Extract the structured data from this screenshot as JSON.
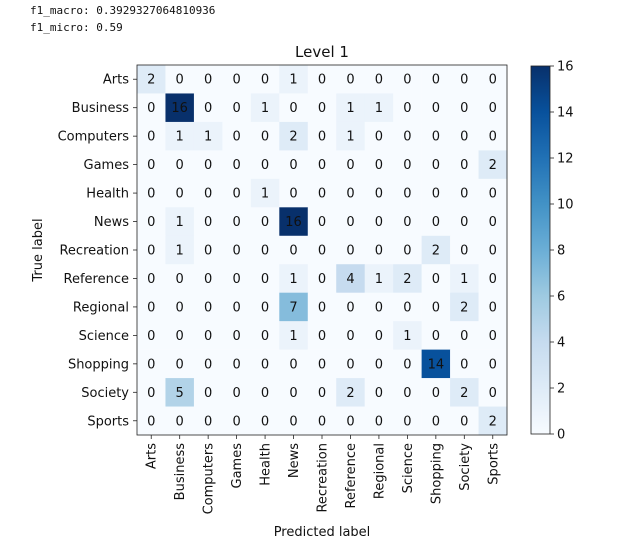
{
  "metrics": {
    "macro_text": "f1_macro: 0.3929327064810936",
    "micro_text": "f1_micro: 0.59"
  },
  "chart_data": {
    "type": "heatmap",
    "title": "Level 1",
    "xlabel": "Predicted label",
    "ylabel": "True label",
    "x_categories": [
      "Arts",
      "Business",
      "Computers",
      "Games",
      "Health",
      "News",
      "Recreation",
      "Reference",
      "Regional",
      "Science",
      "Shopping",
      "Society",
      "Sports"
    ],
    "y_categories": [
      "Arts",
      "Business",
      "Computers",
      "Games",
      "Health",
      "News",
      "Recreation",
      "Reference",
      "Regional",
      "Science",
      "Shopping",
      "Society",
      "Sports"
    ],
    "values": [
      [
        2,
        0,
        0,
        0,
        0,
        1,
        0,
        0,
        0,
        0,
        0,
        0,
        0
      ],
      [
        0,
        16,
        0,
        0,
        1,
        0,
        0,
        1,
        1,
        0,
        0,
        0,
        0
      ],
      [
        0,
        1,
        1,
        0,
        0,
        2,
        0,
        1,
        0,
        0,
        0,
        0,
        0
      ],
      [
        0,
        0,
        0,
        0,
        0,
        0,
        0,
        0,
        0,
        0,
        0,
        0,
        2
      ],
      [
        0,
        0,
        0,
        0,
        1,
        0,
        0,
        0,
        0,
        0,
        0,
        0,
        0
      ],
      [
        0,
        1,
        0,
        0,
        0,
        16,
        0,
        0,
        0,
        0,
        0,
        0,
        0
      ],
      [
        0,
        1,
        0,
        0,
        0,
        0,
        0,
        0,
        0,
        0,
        2,
        0,
        0
      ],
      [
        0,
        0,
        0,
        0,
        0,
        1,
        0,
        4,
        1,
        2,
        0,
        1,
        0
      ],
      [
        0,
        0,
        0,
        0,
        0,
        7,
        0,
        0,
        0,
        0,
        0,
        2,
        0
      ],
      [
        0,
        0,
        0,
        0,
        0,
        1,
        0,
        0,
        0,
        1,
        0,
        0,
        0
      ],
      [
        0,
        0,
        0,
        0,
        0,
        0,
        0,
        0,
        0,
        0,
        14,
        0,
        0
      ],
      [
        0,
        5,
        0,
        0,
        0,
        0,
        0,
        2,
        0,
        0,
        0,
        2,
        0
      ],
      [
        0,
        0,
        0,
        0,
        0,
        0,
        0,
        0,
        0,
        0,
        0,
        0,
        2
      ]
    ],
    "vmin": 0,
    "vmax": 16,
    "colorbar_ticks": [
      0,
      2,
      4,
      6,
      8,
      10,
      12,
      14,
      16
    ],
    "colormap": [
      "#f7fbff",
      "#deebf7",
      "#c6dbef",
      "#9ecae1",
      "#6baed6",
      "#4292c6",
      "#2171b5",
      "#08519c",
      "#08306b"
    ],
    "text_light": "#ffffff",
    "text_dark": "#111111",
    "grid": false
  }
}
